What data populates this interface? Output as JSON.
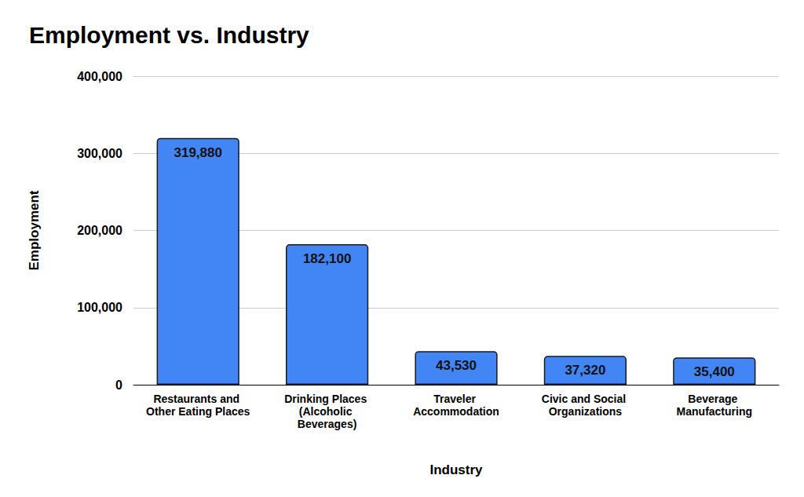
{
  "chart_data": {
    "type": "bar",
    "title": "Employment vs. Industry",
    "x_label": "Industry",
    "y_label": "Employment",
    "categories": [
      "Restaurants and Other Eating Places",
      "Drinking Places (Alcoholic Beverages)",
      "Traveler Accommodation",
      "Civic and Social Organizations",
      "Beverage Manufacturing"
    ],
    "values": [
      319880,
      182100,
      43530,
      37320,
      35400
    ],
    "value_labels": [
      "319,880",
      "182,100",
      "43,530",
      "37,320",
      "35,400"
    ],
    "color": "#4285f4",
    "ylim": [
      0,
      400000
    ],
    "yticks": [
      {
        "value": 0,
        "label": "0"
      },
      {
        "value": 100000,
        "label": "100,000"
      },
      {
        "value": 200000,
        "label": "200,000"
      },
      {
        "value": 300000,
        "label": "300,000"
      },
      {
        "value": 400000,
        "label": "400,000"
      }
    ],
    "grid": true,
    "data_labels": true
  }
}
